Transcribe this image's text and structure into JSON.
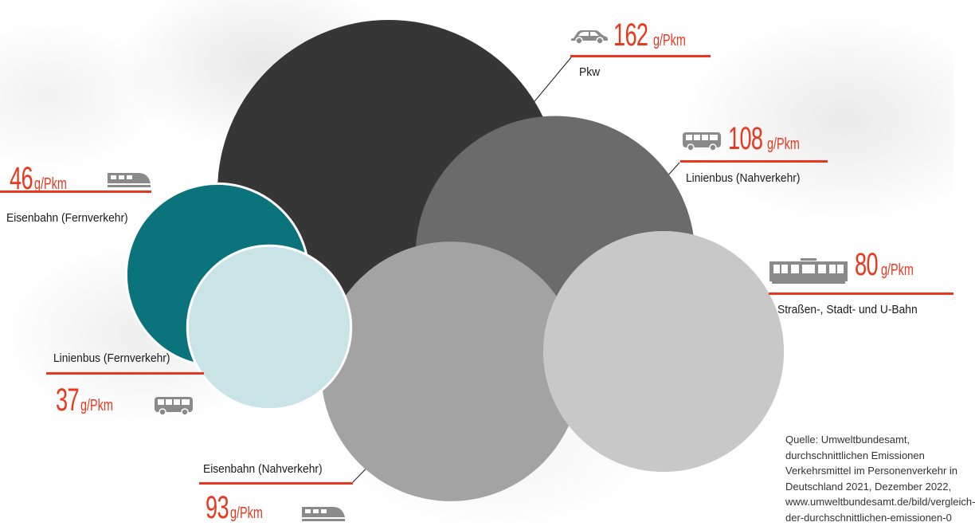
{
  "chart_data": {
    "type": "bubble",
    "unit": "g/Pkm",
    "items": [
      {
        "id": "pkw",
        "label": "Pkw",
        "value": 162,
        "color": "#363636",
        "icon": "car-icon"
      },
      {
        "id": "linienbus-nah",
        "label": "Linienbus (Nahverkehr)",
        "value": 108,
        "color": "#6b6b6b",
        "icon": "bus-icon"
      },
      {
        "id": "bahn-nah",
        "label": "Eisenbahn (Nahverkehr)",
        "value": 93,
        "color": "#a3a3a3",
        "icon": "train-icon"
      },
      {
        "id": "strassenbahn",
        "label": "Straßen-, Stadt- und U-Bahn",
        "value": 80,
        "color": "#c8c8c8",
        "icon": "tram-icon"
      },
      {
        "id": "bahn-fern",
        "label": "Eisenbahn (Fernverkehr)",
        "value": 46,
        "color": "#0a737b",
        "icon": "train-icon"
      },
      {
        "id": "linienbus-fern",
        "label": "Linienbus (Fernverkehr)",
        "value": 37,
        "color": "#c9e3e7",
        "icon": "bus-icon"
      }
    ]
  },
  "colors": {
    "accent": "#e8381f",
    "icon": "#8a8a8a",
    "label": "#1a1a1a"
  },
  "source": {
    "lines": [
      "Quelle: Umweltbundesamt,",
      "durchschnittlichen Emissionen",
      "Verkehrsmittel im Personenverkehr in",
      "Deutschland 2021, Dezember 2022,",
      "www.umweltbundesamt.de/bild/vergleich-",
      "der-durchschnittlichen-emissionen-0"
    ]
  }
}
